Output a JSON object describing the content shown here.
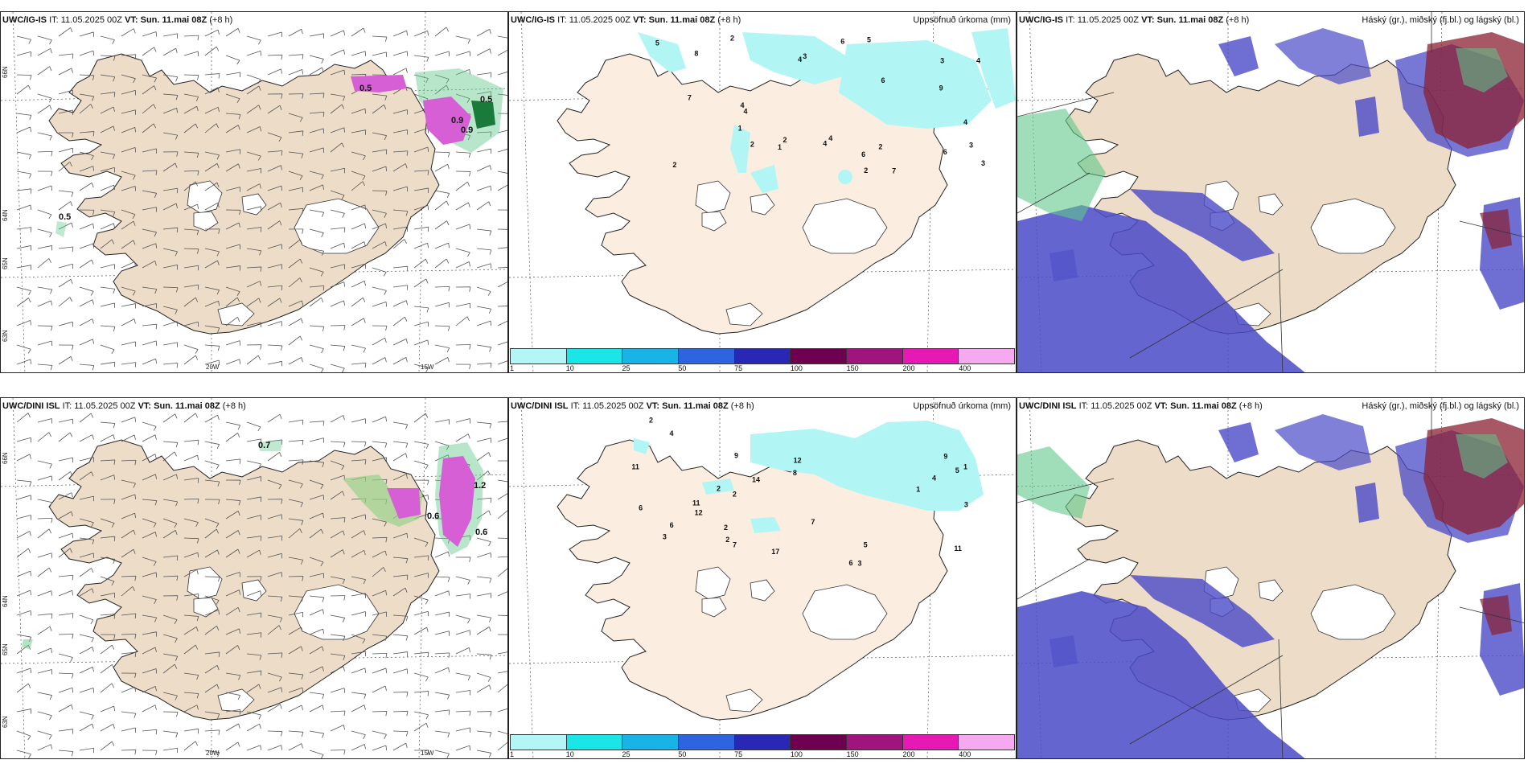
{
  "panels": [
    {
      "model": "UWC/IG-IS",
      "it_label": "IT:",
      "it": "11.05.2025 00Z",
      "vt_label": "VT:",
      "vt": "Sun. 11.mai 08Z",
      "lead": "(+8 h)",
      "right_title": "",
      "kind": "wind",
      "numbers": [
        "0.5",
        "0.5",
        "0.9",
        "0.9",
        "0.5"
      ],
      "axis": [
        "20W",
        "15W",
        "66N",
        "65N",
        "64N",
        "63N"
      ]
    },
    {
      "model": "UWC/IG-IS",
      "it_label": "IT:",
      "it": "11.05.2025 00Z",
      "vt_label": "VT:",
      "vt": "Sun. 11.mai 08Z",
      "lead": "(+8 h)",
      "right_title": "Uppsöfnuð úrkoma (mm)",
      "kind": "precip",
      "numbers": [
        "6",
        "3",
        "4",
        "6",
        "2",
        "6",
        "7",
        "3",
        "8",
        "6",
        "7",
        "4",
        "5",
        "4",
        "2",
        "2",
        "4",
        "3",
        "2",
        "2",
        "4",
        "2",
        "1",
        "5",
        "1",
        "9",
        "3",
        "4",
        "4"
      ]
    },
    {
      "model": "UWC/IG-IS",
      "it_label": "IT:",
      "it": "11.05.2025 00Z",
      "vt_label": "VT:",
      "vt": "Sun. 11.mai 08Z",
      "lead": "(+8 h)",
      "right_title": "Háský (gr.), miðský (fj.bl.) og lágský (bl.)",
      "kind": "cloud",
      "numbers": []
    },
    {
      "model": "UWC/DINI ISL",
      "it_label": "IT:",
      "it": "11.05.2025 00Z",
      "vt_label": "VT:",
      "vt": "Sun. 11.mai 08Z",
      "lead": "(+8 h)",
      "right_title": "",
      "kind": "wind",
      "numbers": [
        "0.7",
        "1.2",
        "0.6",
        "0.6"
      ],
      "axis": [
        "20W",
        "15W",
        "66N",
        "65N",
        "64N",
        "63N"
      ]
    },
    {
      "model": "UWC/DINI ISL",
      "it_label": "IT:",
      "it": "11.05.2025 00Z",
      "vt_label": "VT:",
      "vt": "Sun. 11.mai 08Z",
      "lead": "(+8 h)",
      "right_title": "Uppsöfnuð úrkoma (mm)",
      "kind": "precip",
      "numbers": [
        "11",
        "14",
        "17",
        "12",
        "6",
        "8",
        "12",
        "3",
        "7",
        "11",
        "6",
        "9",
        "5",
        "6",
        "5",
        "2",
        "3",
        "1",
        "2",
        "1",
        "2",
        "2",
        "4",
        "9",
        "3",
        "4",
        "7",
        "2",
        "11"
      ]
    },
    {
      "model": "UWC/DINI ISL",
      "it_label": "IT:",
      "it": "11.05.2025 00Z",
      "vt_label": "VT:",
      "vt": "Sun. 11.mai 08Z",
      "lead": "(+8 h)",
      "right_title": "Háský (gr.), miðský (fj.bl.) og lágský (bl.)",
      "kind": "cloud",
      "numbers": []
    }
  ],
  "colorbar": {
    "ticks": [
      "1",
      "10",
      "25",
      "50",
      "75",
      "100",
      "150",
      "200",
      "400"
    ],
    "colors": [
      "#b4f5f5",
      "#19e6e6",
      "#19b4e6",
      "#2e64e0",
      "#2828b4",
      "#6e0050",
      "#a0147e",
      "#e619b4",
      "#f5aaf0"
    ]
  },
  "colors": {
    "land": "#ecdcc8",
    "land_precip": "#fbeee0",
    "glacier": "#ffffff",
    "cyan": "#b2f5f5",
    "magenta": "#d65fd6",
    "green": "#5fc88a",
    "blue": "#4a4ac8",
    "darkred": "#8a2030"
  }
}
